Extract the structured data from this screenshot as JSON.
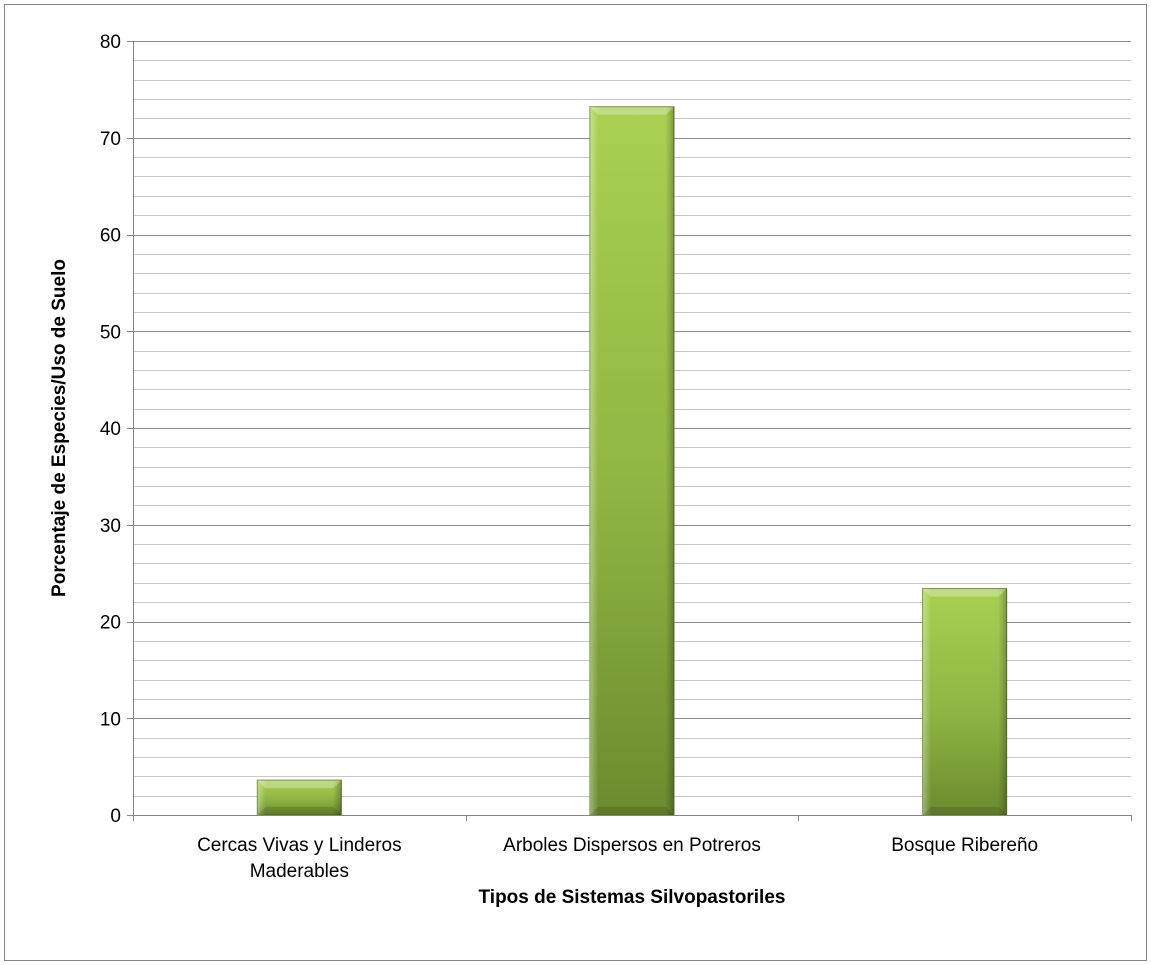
{
  "chart_data": {
    "type": "bar",
    "title": "",
    "xlabel": "Tipos de Sistemas Silvopastoriles",
    "ylabel": "Porcentaje de Especies/Uso de Suelo",
    "categories": [
      [
        "Cercas Vivas y Linderos",
        "Maderables"
      ],
      [
        "Arboles Dispersos en Potreros"
      ],
      [
        "Bosque Ribereño"
      ]
    ],
    "values": [
      3.6,
      73.2,
      23.4
    ],
    "ylim": [
      0,
      80
    ],
    "yticks": [
      0,
      10,
      20,
      30,
      40,
      50,
      60,
      70,
      80
    ],
    "major_gridlines": true,
    "minor_gridlines": true,
    "minor_step": 2,
    "legend": "none",
    "colors": {
      "bar_light": "#a9d052",
      "bar_mid": "#8fb443",
      "bar_dark": "#6b8a2e",
      "bar_edge": "#5e7a27",
      "grid_major": "#8c8c8c",
      "grid_minor": "#c8c8c8",
      "axis": "#868686"
    }
  }
}
